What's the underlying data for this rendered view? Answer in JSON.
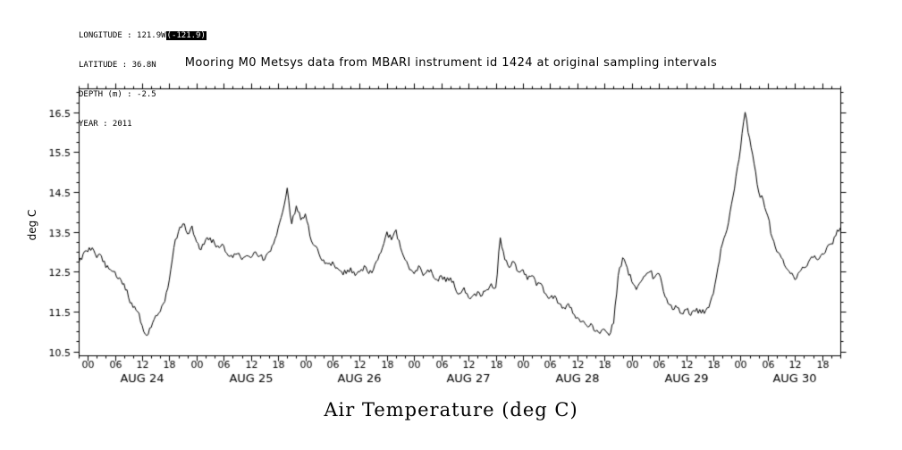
{
  "meta": {
    "longitude_prefix": "LONGITUDE : 121.9W",
    "longitude_highlight": "(-121.9)",
    "latitude": "LATITUDE : 36.8N",
    "depth": "DEPTH (m) : -2.5",
    "year": "YEAR : 2011"
  },
  "chart_data": {
    "type": "line",
    "title": "Mooring M0 Metsys data from MBARI instrument id 1424 at original sampling intervals",
    "ylabel": "deg C",
    "xlabel": "Air Temperature (deg C)",
    "ylim": [
      10.4,
      17.1
    ],
    "xlim_hours": [
      -2,
      166
    ],
    "grid": false,
    "background": "#ffffff",
    "line_color": "#000000",
    "x_axis": {
      "major_tick_hours": 6,
      "minor_tick_hours": 2,
      "first_major_hour": 0,
      "last_major_hour": 162,
      "hour_labels": [
        "00",
        "06",
        "12",
        "18"
      ],
      "day_labels": [
        {
          "label": "AUG 24",
          "hour": 12
        },
        {
          "label": "AUG 25",
          "hour": 36
        },
        {
          "label": "AUG 26",
          "hour": 60
        },
        {
          "label": "AUG 27",
          "hour": 84
        },
        {
          "label": "AUG 28",
          "hour": 108
        },
        {
          "label": "AUG 29",
          "hour": 132
        },
        {
          "label": "AUG 30",
          "hour": 156
        }
      ]
    },
    "y_axis": {
      "tick_values": [
        10.5,
        11.5,
        12.5,
        13.5,
        14.5,
        15.5,
        16.5
      ],
      "tick_labels": [
        "10.5",
        "11.5",
        "12.5",
        "13.5",
        "14.5",
        "15.5",
        "16.5"
      ],
      "minor_step": 0.25
    },
    "noise": {
      "amplitude": 0.08,
      "seed": 20110824,
      "substeps_per_hour": 3
    },
    "series": [
      {
        "name": "air temperature",
        "units": "deg C",
        "start_hour": -2,
        "step_hours": 1,
        "color": "#000000",
        "values": [
          12.7,
          12.95,
          13.0,
          13.1,
          12.85,
          12.9,
          12.6,
          12.55,
          12.5,
          12.35,
          12.2,
          11.85,
          11.6,
          11.5,
          11.15,
          10.9,
          11.1,
          11.4,
          11.5,
          11.75,
          12.3,
          13.1,
          13.5,
          13.7,
          13.45,
          13.65,
          13.25,
          13.05,
          13.3,
          13.35,
          13.2,
          13.1,
          13.15,
          12.9,
          12.85,
          12.95,
          12.8,
          12.9,
          12.85,
          13.0,
          12.9,
          12.8,
          13.0,
          13.2,
          13.6,
          14.0,
          14.6,
          13.7,
          14.15,
          13.8,
          13.95,
          13.4,
          13.15,
          12.95,
          12.8,
          12.7,
          12.75,
          12.6,
          12.5,
          12.45,
          12.6,
          12.4,
          12.5,
          12.65,
          12.45,
          12.55,
          12.8,
          13.1,
          13.5,
          13.3,
          13.55,
          13.1,
          12.8,
          12.55,
          12.45,
          12.65,
          12.4,
          12.55,
          12.45,
          12.3,
          12.4,
          12.25,
          12.35,
          12.1,
          11.95,
          12.1,
          11.85,
          11.9,
          12.0,
          11.9,
          12.05,
          12.2,
          12.1,
          13.35,
          12.8,
          12.6,
          12.75,
          12.5,
          12.55,
          12.3,
          12.4,
          12.15,
          12.2,
          11.95,
          11.85,
          11.9,
          11.7,
          11.6,
          11.7,
          11.45,
          11.35,
          11.25,
          11.15,
          11.2,
          11.0,
          10.95,
          11.05,
          10.9,
          11.2,
          12.4,
          12.85,
          12.6,
          12.25,
          12.05,
          12.25,
          12.4,
          12.5,
          12.35,
          12.45,
          12.0,
          11.7,
          11.55,
          11.6,
          11.45,
          11.55,
          11.4,
          11.5,
          11.55,
          11.45,
          11.6,
          11.95,
          12.6,
          13.2,
          13.55,
          14.2,
          14.9,
          15.6,
          16.5,
          15.85,
          15.2,
          14.5,
          14.3,
          13.9,
          13.35,
          13.0,
          12.85,
          12.6,
          12.45,
          12.3,
          12.5,
          12.6,
          12.75,
          12.85,
          12.8,
          12.95,
          13.1,
          13.2,
          13.4,
          13.6
        ]
      }
    ]
  }
}
